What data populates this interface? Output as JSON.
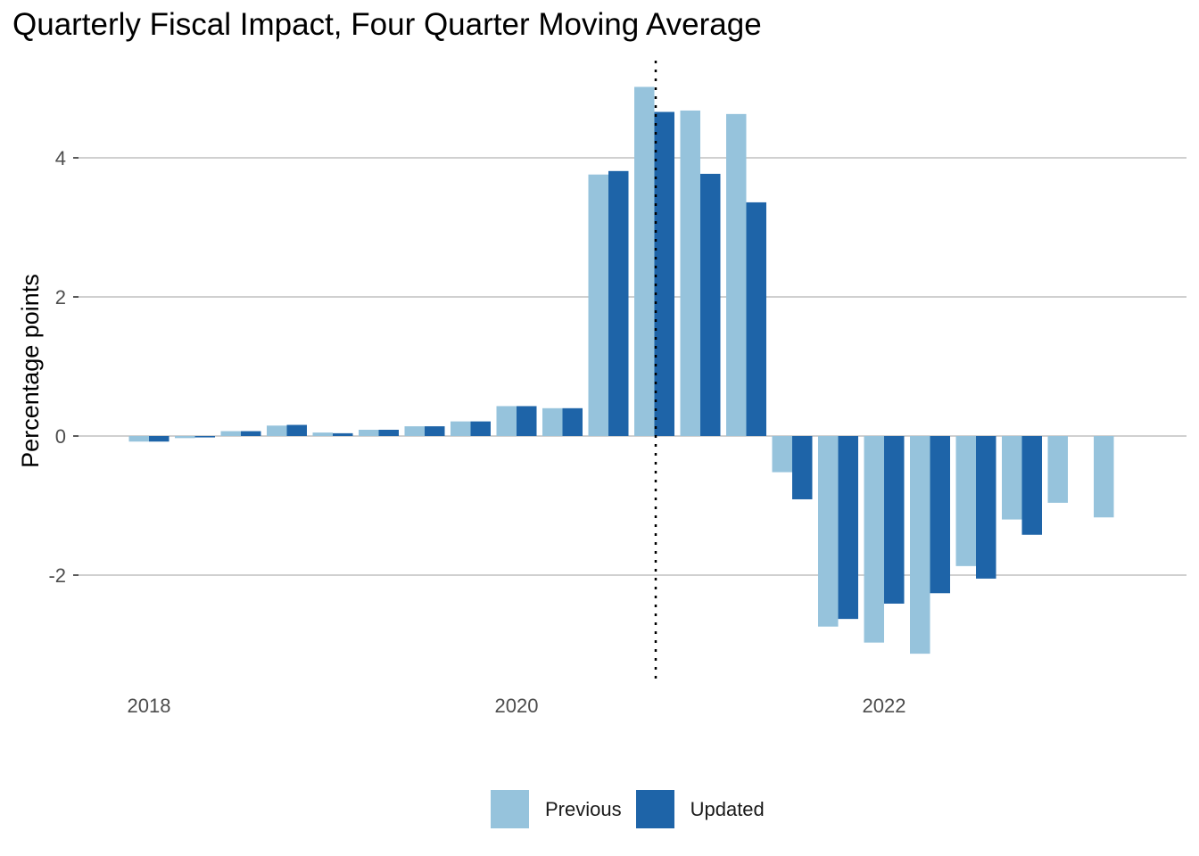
{
  "chart_data": {
    "type": "bar",
    "title": "Quarterly Fiscal Impact, Four Quarter Moving Average",
    "xlabel": "",
    "ylabel": "Percentage points",
    "x_tick_labels": [
      "2018",
      "2020",
      "2022"
    ],
    "y_ticks": [
      -2,
      0,
      2,
      4
    ],
    "ylim": [
      -3.5,
      5.4
    ],
    "grid": true,
    "legend_position": "bottom",
    "vline_at": "2020 Q4",
    "vline_style": "dotted",
    "categories": [
      "2018 Q1",
      "2018 Q2",
      "2018 Q3",
      "2018 Q4",
      "2019 Q1",
      "2019 Q2",
      "2019 Q3",
      "2019 Q4",
      "2020 Q1",
      "2020 Q2",
      "2020 Q3",
      "2020 Q4",
      "2021 Q1",
      "2021 Q2",
      "2021 Q3",
      "2021 Q4",
      "2022 Q1",
      "2022 Q2",
      "2022 Q3",
      "2022 Q4",
      "2023 Q1",
      "2023 Q2"
    ],
    "series": [
      {
        "name": "Previous",
        "color": "#96c3dc",
        "values": [
          -0.08,
          -0.03,
          0.07,
          0.15,
          0.05,
          0.09,
          0.14,
          0.21,
          0.43,
          0.4,
          3.76,
          5.02,
          4.68,
          4.63,
          -0.52,
          -2.74,
          -2.97,
          -3.13,
          -1.87,
          -1.2,
          -0.96,
          -1.17
        ]
      },
      {
        "name": "Updated",
        "color": "#1e64a8",
        "values": [
          -0.08,
          -0.02,
          0.07,
          0.16,
          0.04,
          0.09,
          0.14,
          0.21,
          0.43,
          0.4,
          3.81,
          4.66,
          3.77,
          3.36,
          -0.91,
          -2.63,
          -2.41,
          -2.26,
          -2.05,
          -1.42,
          null,
          null
        ]
      }
    ]
  }
}
